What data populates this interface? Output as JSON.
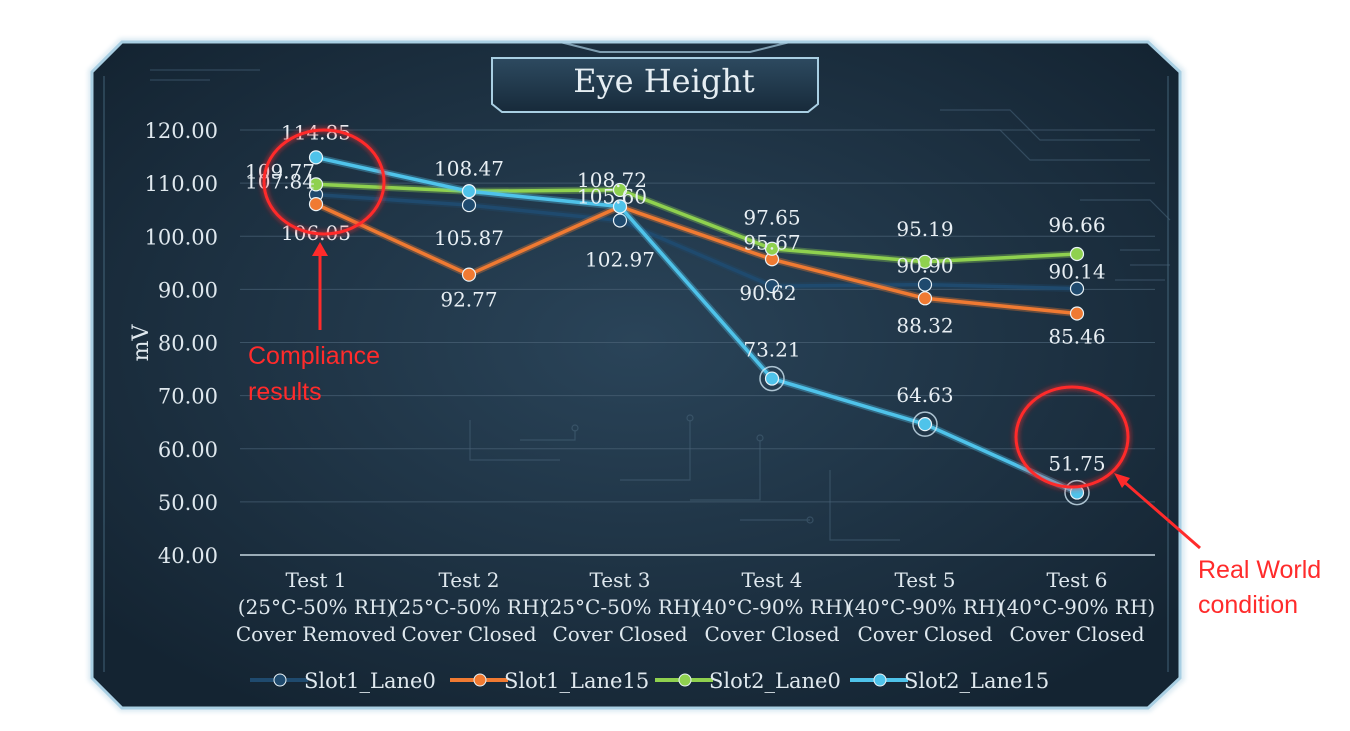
{
  "chart_data": {
    "type": "line",
    "title": "Eye Height",
    "xlabel": "",
    "ylabel": "mV",
    "ylim": [
      40,
      120
    ],
    "yticks": [
      "40.00",
      "50.00",
      "60.00",
      "70.00",
      "80.00",
      "90.00",
      "100.00",
      "110.00",
      "120.00"
    ],
    "categories": [
      [
        "Test 1",
        "(25°C-50% RH)",
        "Cover Removed"
      ],
      [
        "Test 2",
        "(25°C-50% RH)",
        "Cover Closed"
      ],
      [
        "Test 3",
        "(25°C-50% RH)",
        "Cover Closed"
      ],
      [
        "Test 4",
        "(40°C-90% RH)",
        "Cover Closed"
      ],
      [
        "Test 5",
        "(40°C-90% RH)",
        "Cover Closed"
      ],
      [
        "Test 6",
        "(40°C-90% RH)",
        "Cover Closed"
      ]
    ],
    "series": [
      {
        "name": "Slot1_Lane0",
        "color": "#1f4a6e",
        "values": [
          107.84,
          105.87,
          102.97,
          90.62,
          90.9,
          90.14
        ]
      },
      {
        "name": "Slot1_Lane15",
        "color": "#f07a32",
        "values": [
          106.05,
          92.77,
          105.6,
          95.67,
          88.32,
          85.46
        ]
      },
      {
        "name": "Slot2_Lane0",
        "color": "#8fd14f",
        "values": [
          109.77,
          108.47,
          108.72,
          97.65,
          95.19,
          96.66
        ]
      },
      {
        "name": "Slot2_Lane15",
        "color": "#4fc3ea",
        "values": [
          114.85,
          108.47,
          105.6,
          73.21,
          64.63,
          51.75
        ]
      }
    ],
    "data_labels": [
      {
        "text": "114.85",
        "cat": 0,
        "value": 114.85
      },
      {
        "text": "109.77",
        "cat": 0,
        "value": 109.77
      },
      {
        "text": "107.84",
        "cat": 0,
        "value": 107.84
      },
      {
        "text": "106.05",
        "cat": 0,
        "value": 106.05
      },
      {
        "text": "108.47",
        "cat": 1,
        "value": 108.47
      },
      {
        "text": "105.87",
        "cat": 1,
        "value": 105.87
      },
      {
        "text": "92.77",
        "cat": 1,
        "value": 92.77
      },
      {
        "text": "108.72",
        "cat": 2,
        "value": 108.72
      },
      {
        "text": "105.60",
        "cat": 2,
        "value": 105.6
      },
      {
        "text": "102.97",
        "cat": 2,
        "value": 102.97
      },
      {
        "text": "97.65",
        "cat": 3,
        "value": 97.65
      },
      {
        "text": "95.67",
        "cat": 3,
        "value": 95.67
      },
      {
        "text": "90.62",
        "cat": 3,
        "value": 90.62
      },
      {
        "text": "73.21",
        "cat": 3,
        "value": 73.21
      },
      {
        "text": "95.19",
        "cat": 4,
        "value": 95.19
      },
      {
        "text": "90.90",
        "cat": 4,
        "value": 90.9
      },
      {
        "text": "88.32",
        "cat": 4,
        "value": 88.32
      },
      {
        "text": "64.63",
        "cat": 4,
        "value": 64.63
      },
      {
        "text": "96.66",
        "cat": 5,
        "value": 96.66
      },
      {
        "text": "90.14",
        "cat": 5,
        "value": 90.14
      },
      {
        "text": "85.46",
        "cat": 5,
        "value": 85.46
      },
      {
        "text": "51.75",
        "cat": 5,
        "value": 51.75
      }
    ],
    "annotations": [
      {
        "lines": [
          "Compliance",
          "results"
        ],
        "color": "#ff2b2b"
      },
      {
        "lines": [
          "Real World",
          "condition"
        ],
        "color": "#ff2b2b"
      }
    ],
    "grid": true,
    "legend_position": "bottom"
  },
  "colors": {
    "panel_bg": "#1c2f40",
    "frame": "#8fb8d0",
    "text": "#dfe8ee",
    "annotation": "#ff2b2b"
  }
}
